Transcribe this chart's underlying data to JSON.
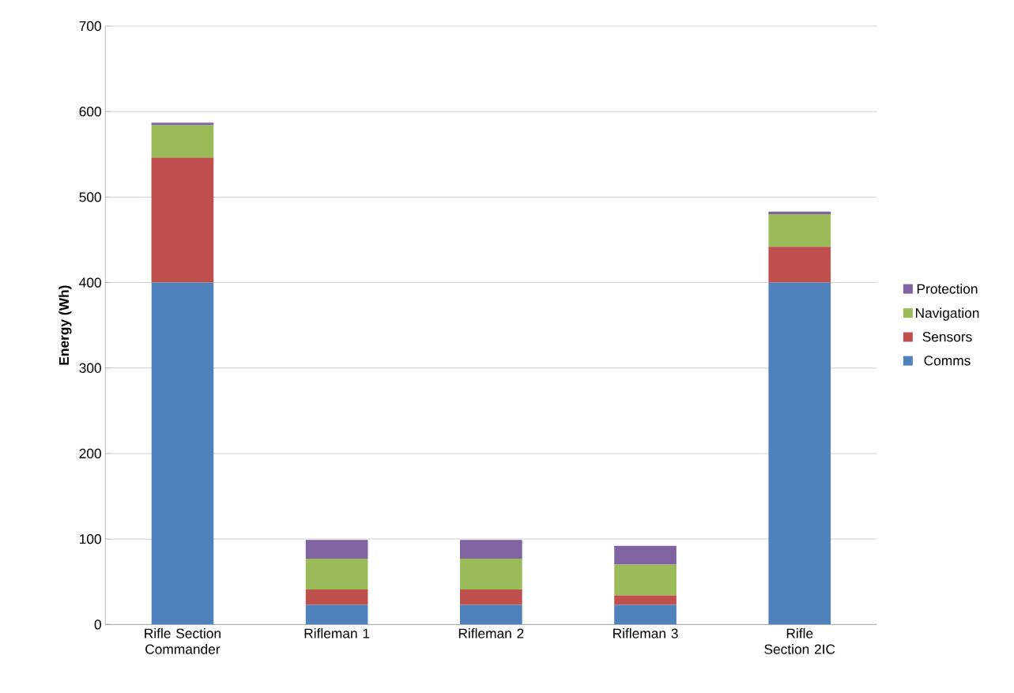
{
  "chart_data": {
    "type": "bar",
    "stacked": true,
    "ylabel": "Energy (Wh)",
    "categories": [
      "Rifle Section Commander",
      "Rifleman 1",
      "Rifleman 2",
      "Rifleman 3",
      "Rifle Section 2IC"
    ],
    "series": [
      {
        "name": "Comms",
        "color": "#4f81bd",
        "values": [
          400,
          23,
          23,
          23,
          400
        ]
      },
      {
        "name": "Sensors",
        "color": "#c0504d",
        "values": [
          146,
          18,
          18,
          11,
          42
        ]
      },
      {
        "name": "Navigation",
        "color": "#9bbb59",
        "values": [
          38,
          36,
          36,
          36,
          38
        ]
      },
      {
        "name": "Protection",
        "color": "#8064a2",
        "values": [
          3,
          22,
          22,
          22,
          3
        ]
      }
    ],
    "ylim": [
      0,
      700
    ],
    "yticks": [
      0,
      100,
      200,
      300,
      400,
      500,
      600,
      700
    ],
    "grid": "y",
    "legend": "right"
  }
}
